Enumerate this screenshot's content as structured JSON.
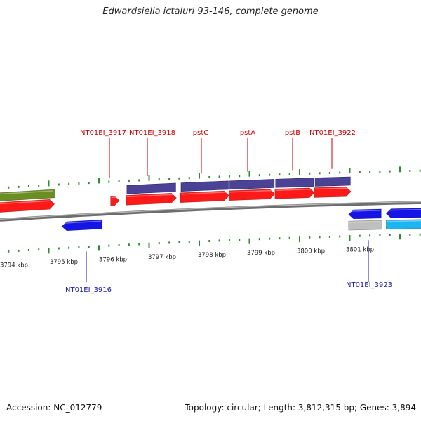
{
  "title": "Edwardsiella ictaluri 93-146, complete genome",
  "footer": {
    "accession": "Accession: NC_012779",
    "stats": "Topology: circular; Length: 3,812,315 bp; Genes: 3,894"
  },
  "colors": {
    "axis": "#808080",
    "tick": "#2e8b2e",
    "gene_forward": "#ff1a1a",
    "gene_reverse": "#1515e6",
    "cds_band": "#4b4296",
    "olive_band": "#6b8e23",
    "grey_feature": "#bfbfbf",
    "cyan_feature": "#1eb4f0",
    "label_top": "#cc0000",
    "label_bottom": "#1a1aaa"
  },
  "scale": {
    "unit": "kbp",
    "tick_labels": [
      "3794 kbp",
      "3795 kbp",
      "3796 kbp",
      "3797 kbp",
      "3798 kbp",
      "3799 kbp",
      "3800 kbp",
      "3801 kbp"
    ]
  },
  "genes": [
    {
      "label": "",
      "strand": "+",
      "start_kbp": 3793.4,
      "end_kbp": 3795.1,
      "color_key": "gene_forward"
    },
    {
      "label": "",
      "strand": "+",
      "start_kbp": 3793.4,
      "end_kbp": 3795.1,
      "color_key": "olive_band"
    },
    {
      "label": "NT01EI_3916",
      "strand": "-",
      "start_kbp": 3795.25,
      "end_kbp": 3796.08,
      "color_key": "gene_reverse"
    },
    {
      "label": "NT01EI_3917",
      "strand": "+",
      "start_kbp": 3796.25,
      "end_kbp": 3796.43,
      "color_key": "gene_forward"
    },
    {
      "label": "NT01EI_3918",
      "strand": "+",
      "start_kbp": 3796.57,
      "end_kbp": 3797.6,
      "color_key": "gene_forward"
    },
    {
      "label": "pstC",
      "strand": "+",
      "start_kbp": 3797.68,
      "end_kbp": 3798.68,
      "color_key": "gene_forward"
    },
    {
      "label": "pstA",
      "strand": "+",
      "start_kbp": 3798.68,
      "end_kbp": 3799.62,
      "color_key": "gene_forward"
    },
    {
      "label": "pstB",
      "strand": "+",
      "start_kbp": 3799.62,
      "end_kbp": 3800.43,
      "color_key": "gene_forward"
    },
    {
      "label": "NT01EI_3922",
      "strand": "+",
      "start_kbp": 3800.43,
      "end_kbp": 3801.18,
      "color_key": "gene_forward"
    },
    {
      "label": "NT01EI_3923",
      "strand": "-",
      "start_kbp": 3801.13,
      "end_kbp": 3801.8,
      "color_key": "gene_reverse"
    },
    {
      "label": "",
      "strand": "-",
      "start_kbp": 3801.9,
      "end_kbp": 3802.9,
      "color_key": "gene_reverse"
    },
    {
      "label": "",
      "strand": "-",
      "start_kbp": 3801.13,
      "end_kbp": 3801.8,
      "color_key": "grey_feature"
    },
    {
      "label": "",
      "strand": "-",
      "start_kbp": 3801.9,
      "end_kbp": 3802.9,
      "color_key": "cyan_feature"
    }
  ],
  "cds_bands": [
    {
      "start_kbp": 3796.57,
      "end_kbp": 3797.6
    },
    {
      "start_kbp": 3797.68,
      "end_kbp": 3798.68
    },
    {
      "start_kbp": 3798.68,
      "end_kbp": 3799.62
    },
    {
      "start_kbp": 3799.62,
      "end_kbp": 3800.43
    },
    {
      "start_kbp": 3800.43,
      "end_kbp": 3801.18
    }
  ]
}
